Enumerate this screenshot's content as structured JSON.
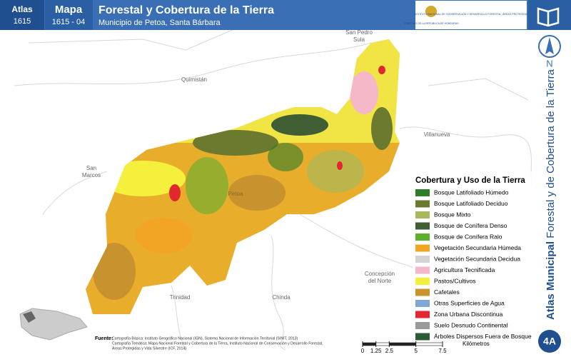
{
  "header": {
    "atlas_label": "Atlas",
    "atlas_code": "1615",
    "map_label": "Mapa",
    "map_code": "1615 - 04",
    "title": "Forestal y Cobertura de la Tierra",
    "subtitle": "Municipio de Petoa, Santa Bárbara",
    "logo_left": "GOBIERNO DE LA REPÚBLICA DE HONDURAS",
    "logo_right": "INSTITUTO NACIONAL DE CONSERVACIÓN Y DESARROLLO FORESTAL, ÁREAS PROTEGIDAS Y VIDA SILVESTRE ICF"
  },
  "places": [
    "San Pedro Sula",
    "Quimistán",
    "Villanueva",
    "San Marcos",
    "Petoa",
    "Concepción del Norte",
    "Trinidad",
    "Chinda"
  ],
  "legend": {
    "title": "Cobertura y Uso de la Tierra",
    "items": [
      {
        "label": "Bosque Latifoliado Húmedo",
        "color": "#2e7d2a"
      },
      {
        "label": "Bosque Latifoliado Deciduo",
        "color": "#6b7a2e"
      },
      {
        "label": "Bosque Mixto",
        "color": "#a8b85a"
      },
      {
        "label": "Bosque de Conífera Denso",
        "color": "#3f5e34"
      },
      {
        "label": "Bosque de Conífera Ralo",
        "color": "#5fae2e"
      },
      {
        "label": "Vegetación Secundaria Húmeda",
        "color": "#f2a424"
      },
      {
        "label": "Vegetación Secundaria Decidua",
        "color": "#d4d4d4"
      },
      {
        "label": "Agricultura Tecnificada",
        "color": "#f4b8c8"
      },
      {
        "label": "Pastos/Cultivos",
        "color": "#f5f03c"
      },
      {
        "label": "Cafetales",
        "color": "#c8922e"
      },
      {
        "label": "Otras Superficies de Agua",
        "color": "#7fa6d4"
      },
      {
        "label": "Zona Urbana Discontinua",
        "color": "#e0282e"
      },
      {
        "label": "Suelo Desnudo Continental",
        "color": "#9a9a9a"
      },
      {
        "label": "Árboles Dispersos Fuera de Bosque",
        "color": "#2f5a3a"
      }
    ]
  },
  "side_title": {
    "strong": "Atlas Municipal",
    "rest": "Forestal y de Cobertura de la Tierra"
  },
  "north": "N",
  "badge": "4A",
  "source": {
    "label": "Fuente:",
    "lines": [
      "Cartografía Básica: Instituto Geográfico Nacional (IGN), Sistema Nacional de Información Territorial (SINIT, 2013)",
      "Cartografía Temática: Mapa Nacional Forestal y Cobertura de la Tierra, Instituto Nacional de Conservación y Desarrollo Forestal,",
      "Áreas Protegidas y Vida Silvestre (ICF, 2014)"
    ]
  },
  "scale": {
    "ticks": [
      0,
      1.25,
      2.5,
      5,
      7.5
    ],
    "unit": "Kilómetros"
  }
}
